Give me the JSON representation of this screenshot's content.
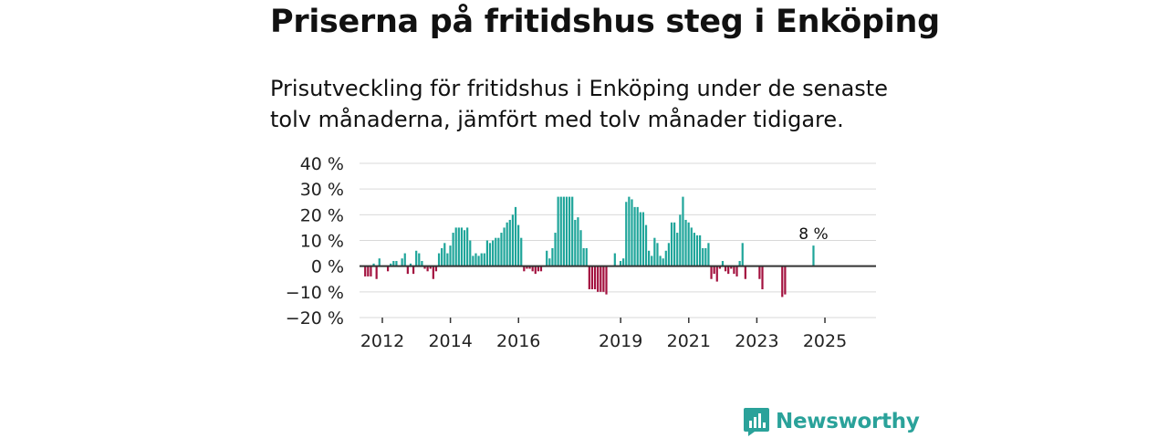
{
  "title": "Priserna på fritidshus steg i Enköping",
  "subtitle": "Prisutveckling för fritidshus i Enköping under de senaste tolv månaderna, jämfört med tolv månader tidigare.",
  "brand": {
    "name": "Newsworthy",
    "color": "#2aa29a"
  },
  "colors": {
    "positive": "#1fa59a",
    "negative": "#a3123f",
    "zero_line": "#333333"
  },
  "chart_data": {
    "type": "bar",
    "title": "Priserna på fritidshus steg i Enköping",
    "ylabel": "",
    "xlabel": "",
    "ylim": [
      -20,
      40
    ],
    "y_ticks": [
      40,
      30,
      20,
      10,
      0,
      -10,
      -20
    ],
    "y_tick_labels": [
      "40 %",
      "30 %",
      "20 %",
      "10 %",
      "0 %",
      "−10 %",
      "−20 %"
    ],
    "x_ticks": [
      {
        "label": "2012",
        "x": 2012.0
      },
      {
        "label": "2014",
        "x": 2014.0
      },
      {
        "label": "2016",
        "x": 2016.0
      },
      {
        "label": "2019",
        "x": 2019.0
      },
      {
        "label": "2021",
        "x": 2021.0
      },
      {
        "label": "2023",
        "x": 2023.0
      },
      {
        "label": "2025",
        "x": 2025.0
      }
    ],
    "x_range": [
      2011.33,
      2026.5
    ],
    "x_start": 2011.33,
    "step": 0.0833333,
    "values": [
      null,
      null,
      -4,
      -4,
      -4,
      1,
      -5,
      3,
      null,
      null,
      -2,
      1,
      2,
      2,
      null,
      3,
      5,
      -3,
      1,
      -3,
      6,
      5,
      2,
      -1,
      -2,
      -1,
      -5,
      -2,
      5,
      7,
      9,
      5,
      8,
      13,
      15,
      15,
      15,
      14,
      15,
      10,
      4,
      5,
      4,
      5,
      5,
      10,
      9,
      10,
      11,
      11,
      13,
      15,
      17,
      18,
      20,
      23,
      16,
      11,
      -2,
      -1,
      -1,
      -2,
      -3,
      -2,
      -2,
      null,
      6,
      3,
      7,
      13,
      27,
      27,
      27,
      27,
      27,
      27,
      18,
      19,
      14,
      7,
      7,
      -9,
      -9,
      -9,
      -10,
      -10,
      -10,
      -11,
      null,
      null,
      5,
      null,
      2,
      3,
      25,
      27,
      26,
      23,
      23,
      21,
      21,
      16,
      6,
      4,
      11,
      9,
      4,
      3,
      6,
      9,
      17,
      17,
      13,
      20,
      27,
      18,
      17,
      15,
      13,
      12,
      12,
      7,
      7,
      9,
      -5,
      -3,
      -6,
      -1,
      2,
      -2,
      -3,
      -1,
      -3,
      -4,
      2,
      9,
      -5,
      null,
      null,
      null,
      null,
      -5,
      -9,
      null,
      null,
      null,
      null,
      null,
      null,
      -12,
      -11,
      null,
      null,
      null,
      null,
      null,
      null,
      null,
      null,
      null,
      8
    ],
    "annotation": {
      "label": "8 %",
      "value": 8
    }
  }
}
